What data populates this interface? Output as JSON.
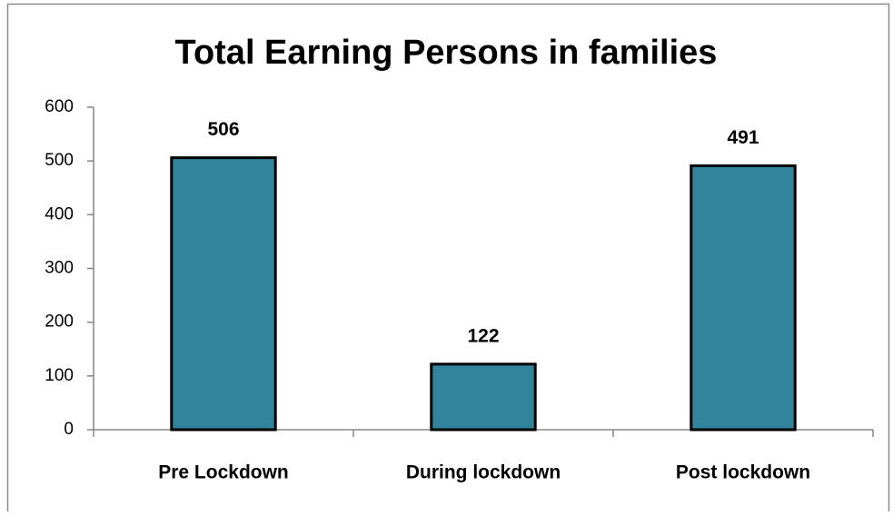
{
  "chart_data": {
    "type": "bar",
    "title": "Total Earning Persons in families",
    "categories": [
      "Pre Lockdown",
      "During lockdown",
      "Post lockdown"
    ],
    "values": [
      506,
      122,
      491
    ],
    "color": "#31849b",
    "ylim": [
      0,
      600
    ],
    "yticks": [
      0,
      100,
      200,
      300,
      400,
      500,
      600
    ],
    "grid": false
  }
}
